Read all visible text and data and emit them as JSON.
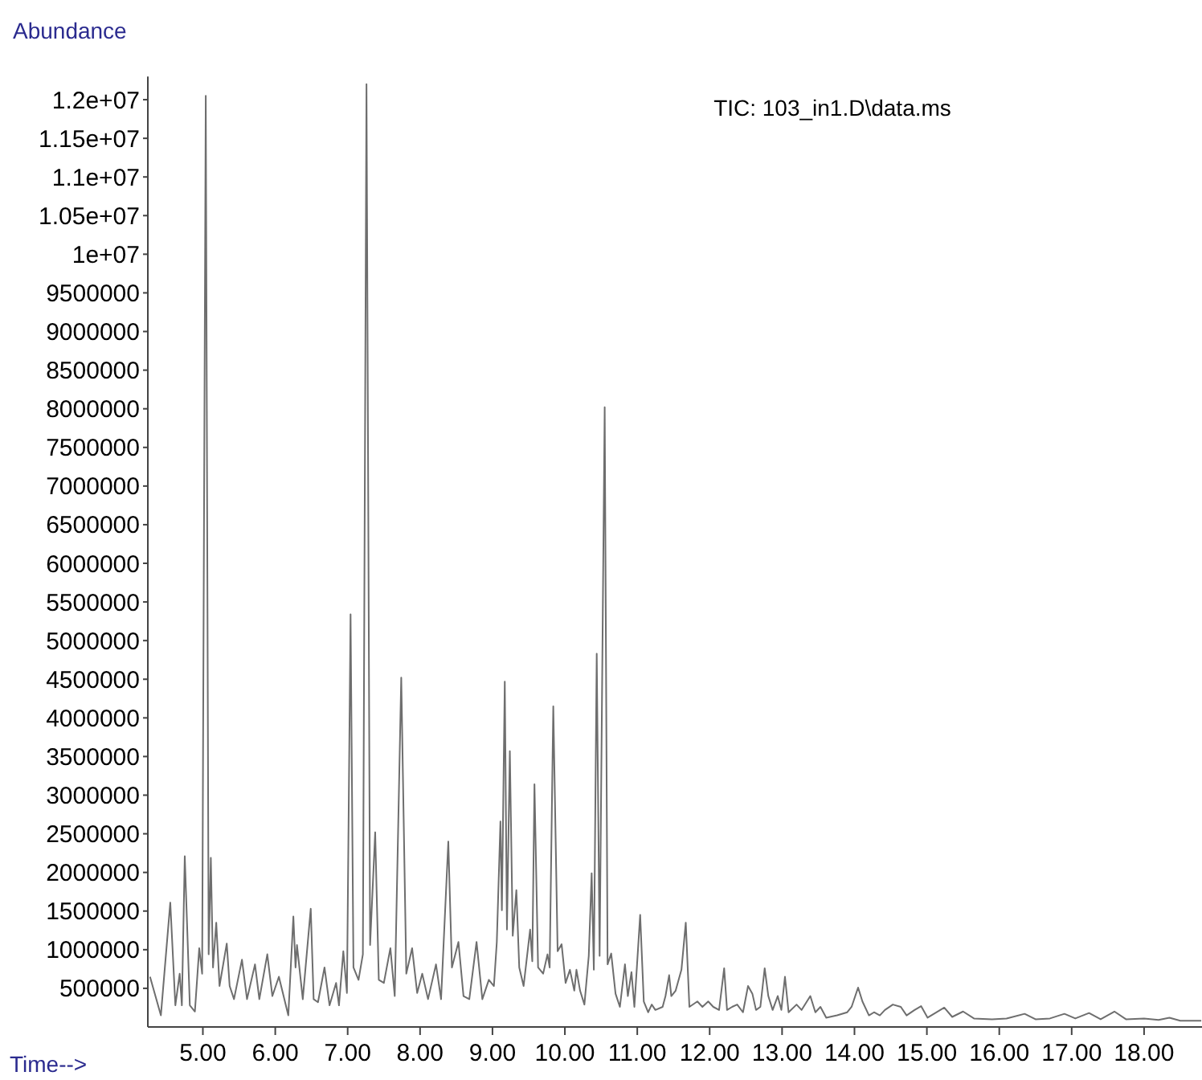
{
  "chart_data": {
    "type": "line",
    "title": "TIC: 103_in1.D\\data.ms",
    "xlabel": "Time-->",
    "ylabel": "Abundance",
    "xlim": [
      4.24,
      18.8
    ],
    "ylim": [
      0,
      12300000
    ],
    "xticks": [
      {
        "value": 5,
        "label": "5.00"
      },
      {
        "value": 6,
        "label": "6.00"
      },
      {
        "value": 7,
        "label": "7.00"
      },
      {
        "value": 8,
        "label": "8.00"
      },
      {
        "value": 9,
        "label": "9.00"
      },
      {
        "value": 10,
        "label": "10.00"
      },
      {
        "value": 11,
        "label": "11.00"
      },
      {
        "value": 12,
        "label": "12.00"
      },
      {
        "value": 13,
        "label": "13.00"
      },
      {
        "value": 14,
        "label": "14.00"
      },
      {
        "value": 15,
        "label": "15.00"
      },
      {
        "value": 16,
        "label": "16.00"
      },
      {
        "value": 17,
        "label": "17.00"
      },
      {
        "value": 18,
        "label": "18.00"
      }
    ],
    "yticks": [
      500000,
      1000000,
      1500000,
      2000000,
      2500000,
      3000000,
      3500000,
      4000000,
      4500000,
      5000000,
      5500000,
      6000000,
      6500000,
      7000000,
      7500000,
      8000000,
      8500000,
      9000000,
      9500000,
      {
        "value": 10000000,
        "label": "1e+07"
      },
      {
        "value": 10500000,
        "label": "1.05e+07"
      },
      {
        "value": 11000000,
        "label": "1.1e+07"
      },
      {
        "value": 11500000,
        "label": "1.15e+07"
      },
      {
        "value": 12000000,
        "label": "1.2e+07"
      }
    ],
    "grid": false,
    "marker": "none",
    "line_style": "solid",
    "series": [
      {
        "color": "#6e6e6e",
        "x": [
          4.27,
          4.42,
          4.55,
          4.62,
          4.68,
          4.71,
          4.75,
          4.82,
          4.89,
          4.95,
          4.99,
          5.04,
          5.08,
          5.11,
          5.14,
          5.185,
          5.23,
          5.33,
          5.37,
          5.43,
          5.54,
          5.61,
          5.72,
          5.78,
          5.89,
          5.96,
          6.05,
          6.18,
          6.25,
          6.28,
          6.3,
          6.38,
          6.49,
          6.53,
          6.59,
          6.68,
          6.75,
          6.84,
          6.88,
          6.94,
          6.99,
          7.04,
          7.08,
          7.15,
          7.21,
          7.26,
          7.31,
          7.38,
          7.43,
          7.5,
          7.59,
          7.65,
          7.74,
          7.81,
          7.89,
          7.96,
          8.03,
          8.11,
          8.22,
          8.29,
          8.39,
          8.44,
          8.53,
          8.6,
          8.68,
          8.78,
          8.86,
          8.95,
          9.02,
          9.06,
          9.11,
          9.13,
          9.17,
          9.2,
          9.24,
          9.28,
          9.33,
          9.37,
          9.43,
          9.52,
          9.55,
          9.58,
          9.63,
          9.7,
          9.76,
          9.79,
          9.84,
          9.9,
          9.955,
          10.01,
          10.07,
          10.13,
          10.16,
          10.21,
          10.27,
          10.33,
          10.37,
          10.4,
          10.44,
          10.48,
          10.55,
          10.59,
          10.64,
          10.7,
          10.76,
          10.83,
          10.87,
          10.92,
          10.96,
          11.04,
          11.09,
          11.15,
          11.2,
          11.25,
          11.35,
          11.39,
          11.44,
          11.47,
          11.53,
          11.61,
          11.67,
          11.72,
          11.83,
          11.9,
          11.98,
          12.05,
          12.13,
          12.2,
          12.24,
          12.31,
          12.38,
          12.46,
          12.53,
          12.59,
          12.64,
          12.7,
          12.76,
          12.81,
          12.87,
          12.94,
          12.99,
          13.04,
          13.09,
          13.2,
          13.27,
          13.39,
          13.46,
          13.53,
          13.61,
          13.76,
          13.9,
          13.96,
          14.05,
          14.11,
          14.2,
          14.27,
          14.35,
          14.42,
          14.53,
          14.64,
          14.72,
          14.83,
          14.92,
          15.01,
          15.24,
          15.35,
          15.5,
          15.65,
          15.9,
          16.1,
          16.35,
          16.5,
          16.7,
          16.9,
          17.05,
          17.24,
          17.4,
          17.59,
          17.75,
          18.0,
          18.2,
          18.35,
          18.5,
          18.79
        ],
        "values": [
          650000,
          150000,
          1610000,
          280000,
          690000,
          280000,
          2210000,
          280000,
          200000,
          1020000,
          690000,
          12050000,
          940000,
          2190000,
          770000,
          1350000,
          530000,
          1080000,
          530000,
          360000,
          870000,
          360000,
          810000,
          360000,
          940000,
          400000,
          650000,
          150000,
          1430000,
          770000,
          1060000,
          360000,
          1530000,
          360000,
          320000,
          770000,
          280000,
          570000,
          280000,
          980000,
          440000,
          5340000,
          770000,
          610000,
          940000,
          12200000,
          1060000,
          2520000,
          610000,
          570000,
          1020000,
          400000,
          4520000,
          690000,
          1020000,
          440000,
          690000,
          360000,
          810000,
          360000,
          2400000,
          770000,
          1100000,
          400000,
          360000,
          1100000,
          360000,
          610000,
          530000,
          1100000,
          2660000,
          1510000,
          4470000,
          1260000,
          3570000,
          1180000,
          1770000,
          770000,
          530000,
          1260000,
          850000,
          3140000,
          770000,
          690000,
          940000,
          770000,
          4150000,
          980000,
          1070000,
          570000,
          740000,
          470000,
          740000,
          470000,
          290000,
          920000,
          1990000,
          740000,
          4830000,
          920000,
          8020000,
          810000,
          950000,
          430000,
          260000,
          810000,
          400000,
          710000,
          260000,
          1450000,
          330000,
          190000,
          290000,
          220000,
          260000,
          400000,
          670000,
          400000,
          470000,
          740000,
          1350000,
          260000,
          330000,
          260000,
          330000,
          260000,
          220000,
          760000,
          220000,
          260000,
          290000,
          190000,
          530000,
          430000,
          220000,
          260000,
          760000,
          400000,
          220000,
          400000,
          220000,
          650000,
          190000,
          290000,
          220000,
          400000,
          190000,
          260000,
          120000,
          150000,
          190000,
          260000,
          510000,
          330000,
          150000,
          190000,
          150000,
          220000,
          290000,
          260000,
          150000,
          220000,
          270000,
          120000,
          250000,
          130000,
          200000,
          110000,
          100000,
          110000,
          170000,
          100000,
          110000,
          170000,
          110000,
          180000,
          100000,
          200000,
          100000,
          110000,
          90000,
          120000,
          80000,
          80000
        ]
      }
    ]
  }
}
